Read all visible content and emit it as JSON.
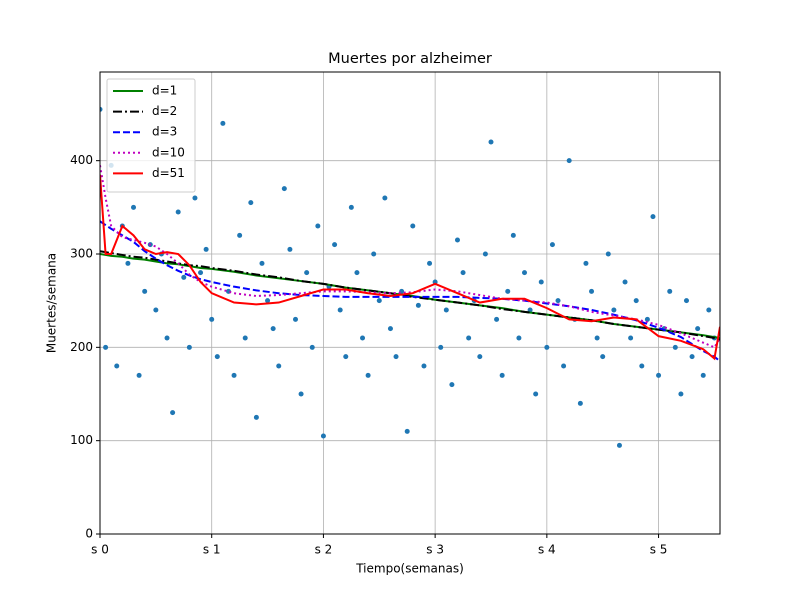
{
  "chart_data": {
    "type": "scatter",
    "title": "Muertes por alzheimer",
    "xlabel": "Tiempo(semanas)",
    "ylabel": "Muertes/semana",
    "xlim": [
      0,
      5.55
    ],
    "ylim": [
      0,
      495
    ],
    "xticks": [
      {
        "value": 0,
        "label": "s 0"
      },
      {
        "value": 1,
        "label": "s 1"
      },
      {
        "value": 2,
        "label": "s 2"
      },
      {
        "value": 3,
        "label": "s 3"
      },
      {
        "value": 4,
        "label": "s 4"
      },
      {
        "value": 5,
        "label": "s 5"
      }
    ],
    "yticks": [
      0,
      100,
      200,
      300,
      400
    ],
    "grid": true,
    "legend": "upper left",
    "points": {
      "color": "#1f77b4",
      "x": [
        0,
        0.05,
        0.1,
        0.15,
        0.2,
        0.25,
        0.3,
        0.35,
        0.4,
        0.45,
        0.5,
        0.55,
        0.6,
        0.65,
        0.7,
        0.75,
        0.8,
        0.85,
        0.9,
        0.95,
        1,
        1.05,
        1.1,
        1.15,
        1.2,
        1.25,
        1.3,
        1.35,
        1.4,
        1.45,
        1.5,
        1.55,
        1.6,
        1.65,
        1.7,
        1.75,
        1.8,
        1.85,
        1.9,
        1.95,
        2,
        2.05,
        2.1,
        2.15,
        2.2,
        2.25,
        2.3,
        2.35,
        2.4,
        2.45,
        2.5,
        2.55,
        2.6,
        2.65,
        2.7,
        2.75,
        2.8,
        2.85,
        2.9,
        2.95,
        3,
        3.05,
        3.1,
        3.15,
        3.2,
        3.25,
        3.3,
        3.35,
        3.4,
        3.45,
        3.5,
        3.55,
        3.6,
        3.65,
        3.7,
        3.75,
        3.8,
        3.85,
        3.9,
        3.95,
        4,
        4.05,
        4.1,
        4.15,
        4.2,
        4.25,
        4.3,
        4.35,
        4.4,
        4.45,
        4.5,
        4.55,
        4.6,
        4.65,
        4.7,
        4.75,
        4.8,
        4.85,
        4.9,
        4.95,
        5,
        5.05,
        5.1,
        5.15,
        5.2,
        5.25,
        5.3,
        5.35,
        5.4,
        5.45,
        5.5
      ],
      "values": [
        455,
        200,
        395,
        180,
        330,
        290,
        350,
        170,
        260,
        310,
        240,
        300,
        210,
        130,
        345,
        275,
        200,
        360,
        280,
        305,
        230,
        190,
        440,
        260,
        170,
        320,
        210,
        355,
        125,
        290,
        250,
        220,
        180,
        370,
        305,
        230,
        150,
        280,
        200,
        330,
        105,
        265,
        310,
        240,
        190,
        350,
        280,
        210,
        170,
        300,
        250,
        360,
        220,
        190,
        260,
        110,
        330,
        245,
        180,
        290,
        270,
        200,
        240,
        160,
        315,
        280,
        210,
        250,
        190,
        300,
        420,
        230,
        170,
        260,
        320,
        210,
        280,
        240,
        150,
        270,
        200,
        310,
        250,
        180,
        400,
        230,
        140,
        290,
        260,
        210,
        190,
        300,
        240,
        95,
        270,
        210,
        250,
        180,
        230,
        340,
        170,
        220,
        260,
        200,
        150,
        250,
        190,
        220,
        170,
        240,
        210
      ]
    },
    "x": [
      0,
      0.05,
      0.1,
      0.2,
      0.3,
      0.4,
      0.5,
      0.6,
      0.7,
      0.8,
      0.9,
      1.0,
      1.2,
      1.4,
      1.6,
      1.8,
      2.0,
      2.2,
      2.4,
      2.6,
      2.8,
      3.0,
      3.2,
      3.4,
      3.6,
      3.8,
      4.0,
      4.2,
      4.4,
      4.6,
      4.8,
      5.0,
      5.2,
      5.4,
      5.5,
      5.55
    ],
    "series": [
      {
        "name": "d=1",
        "color": "#008000",
        "linestyle": "solid",
        "values": [
          300,
          299,
          298,
          297,
          295,
          294,
          292,
          290,
          289,
          287,
          285,
          284,
          281,
          277,
          274,
          271,
          268,
          264,
          261,
          258,
          255,
          251,
          248,
          245,
          242,
          238,
          235,
          232,
          229,
          225,
          222,
          219,
          216,
          213,
          211,
          210
        ]
      },
      {
        "name": "d=2",
        "color": "#000000",
        "linestyle": "dashdot",
        "values": [
          303,
          302,
          301,
          299,
          297,
          296,
          294,
          292,
          290,
          288,
          287,
          285,
          282,
          278,
          275,
          271,
          268,
          264,
          261,
          258,
          254,
          251,
          248,
          245,
          241,
          238,
          235,
          232,
          229,
          225,
          222,
          219,
          216,
          212,
          210,
          208
        ]
      },
      {
        "name": "d=3",
        "color": "#0000ff",
        "linestyle": "dashed",
        "values": [
          335,
          331,
          327,
          320,
          313,
          303,
          295,
          288,
          282,
          277,
          273,
          270,
          265,
          261,
          258,
          256,
          255,
          254,
          254,
          254,
          254,
          254,
          254,
          253,
          252,
          250,
          247,
          244,
          240,
          235,
          229,
          221,
          211,
          196,
          190,
          185
        ]
      },
      {
        "name": "d=10",
        "color": "#bf00bf",
        "linestyle": "dotted",
        "values": [
          395,
          360,
          330,
          318,
          315,
          312,
          308,
          300,
          290,
          278,
          270,
          265,
          258,
          255,
          256,
          258,
          260,
          260,
          259,
          258,
          259,
          262,
          260,
          256,
          252,
          250,
          248,
          244,
          238,
          234,
          230,
          224,
          215,
          205,
          200,
          210
        ]
      },
      {
        "name": "d=51",
        "color": "#ff0000",
        "linestyle": "solid",
        "values": [
          385,
          300,
          300,
          330,
          320,
          305,
          300,
          302,
          300,
          288,
          270,
          258,
          248,
          246,
          248,
          255,
          262,
          262,
          258,
          255,
          258,
          268,
          258,
          248,
          252,
          252,
          242,
          230,
          228,
          232,
          230,
          212,
          207,
          198,
          188,
          222
        ]
      }
    ]
  }
}
